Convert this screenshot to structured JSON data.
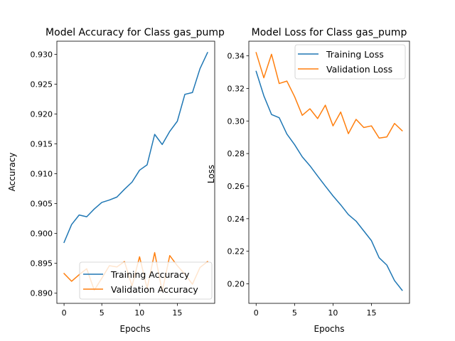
{
  "chart_data": [
    {
      "type": "line",
      "title": "Model Accuracy for Class gas_pump",
      "xlabel": "Epochs",
      "ylabel": "Accuracy",
      "xlim": [
        -0.95,
        19.95
      ],
      "ylim": [
        0.8883,
        0.9322
      ],
      "xticks": [
        0,
        5,
        10,
        15
      ],
      "yticks": [
        0.89,
        0.895,
        0.9,
        0.905,
        0.91,
        0.915,
        0.92,
        0.925,
        0.93
      ],
      "ytick_labels": [
        "0.890",
        "0.895",
        "0.900",
        "0.905",
        "0.910",
        "0.915",
        "0.920",
        "0.925",
        "0.930"
      ],
      "grid": false,
      "legend_position": "lower-right",
      "x": [
        0,
        1,
        2,
        3,
        4,
        5,
        6,
        7,
        8,
        9,
        10,
        11,
        12,
        13,
        14,
        15,
        16,
        17,
        18,
        19
      ],
      "series": [
        {
          "name": "Training Accuracy",
          "color": "#1f77b4",
          "values": [
            0.8985,
            0.9015,
            0.9031,
            0.9028,
            0.9041,
            0.9052,
            0.9056,
            0.9061,
            0.9074,
            0.9086,
            0.9106,
            0.9115,
            0.9166,
            0.9149,
            0.9171,
            0.9188,
            0.9233,
            0.9236,
            0.9276,
            0.9303
          ]
        },
        {
          "name": "Validation Accuracy",
          "color": "#ff7f0e",
          "values": [
            0.8933,
            0.892,
            0.8931,
            0.8941,
            0.8905,
            0.8925,
            0.8946,
            0.8944,
            0.8953,
            0.8912,
            0.8961,
            0.8908,
            0.8968,
            0.8903,
            0.8963,
            0.8946,
            0.8932,
            0.8915,
            0.8943,
            0.8953
          ]
        }
      ]
    },
    {
      "type": "line",
      "title": "Model Loss for Class gas_pump",
      "xlabel": "Epochs",
      "ylabel": "Loss",
      "xlim": [
        -0.95,
        19.95
      ],
      "ylim": [
        0.188,
        0.349
      ],
      "xticks": [
        0,
        5,
        10,
        15
      ],
      "yticks": [
        0.2,
        0.22,
        0.24,
        0.26,
        0.28,
        0.3,
        0.32,
        0.34
      ],
      "ytick_labels": [
        "0.20",
        "0.22",
        "0.24",
        "0.26",
        "0.28",
        "0.30",
        "0.32",
        "0.34"
      ],
      "grid": false,
      "legend_position": "upper-right",
      "x": [
        0,
        1,
        2,
        3,
        4,
        5,
        6,
        7,
        8,
        9,
        10,
        11,
        12,
        13,
        14,
        15,
        16,
        17,
        18,
        19
      ],
      "series": [
        {
          "name": "Training Loss",
          "color": "#1f77b4",
          "values": [
            0.3305,
            0.3155,
            0.304,
            0.302,
            0.292,
            0.2855,
            0.278,
            0.2725,
            0.2662,
            0.26,
            0.254,
            0.2485,
            0.2425,
            0.2385,
            0.2325,
            0.2265,
            0.216,
            0.2115,
            0.202,
            0.196
          ]
        },
        {
          "name": "Validation Loss",
          "color": "#ff7f0e",
          "values": [
            0.342,
            0.3265,
            0.341,
            0.323,
            0.3245,
            0.315,
            0.3035,
            0.3075,
            0.3015,
            0.3097,
            0.297,
            0.3055,
            0.2922,
            0.301,
            0.296,
            0.297,
            0.2895,
            0.2902,
            0.2985,
            0.294
          ]
        }
      ]
    }
  ]
}
